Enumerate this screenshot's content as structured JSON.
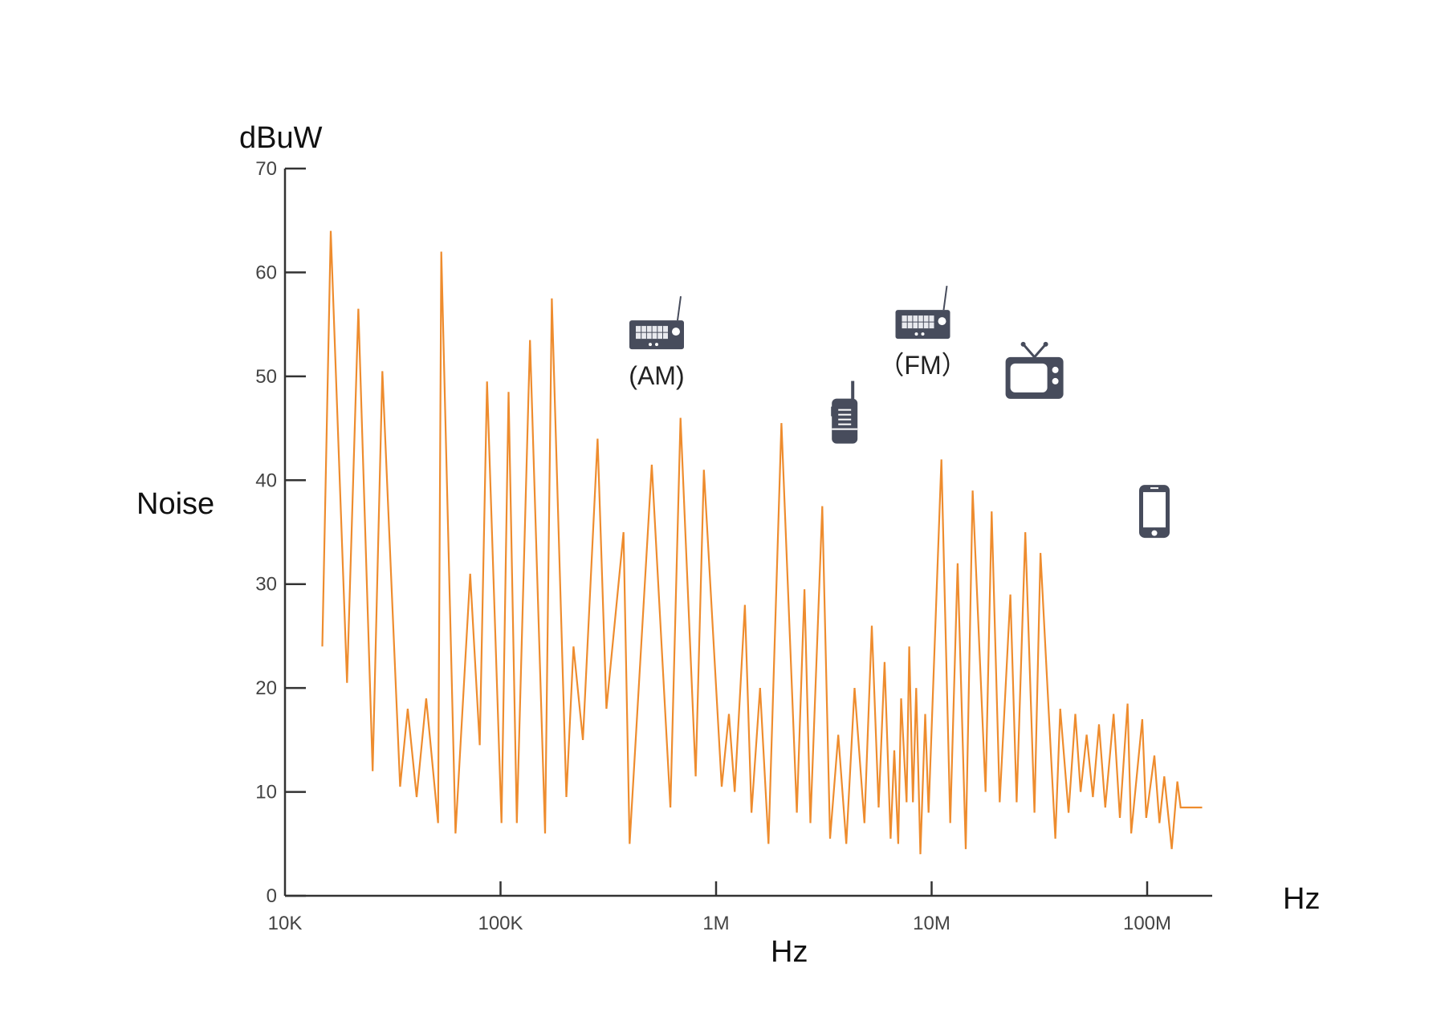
{
  "chart_data": {
    "type": "line",
    "ylabel_unit": "dBuW",
    "ylabel": "Noise",
    "xlabel": "Hz",
    "xlabel_unit": "Hz",
    "x_scale": "log",
    "x_range_hz": [
      10000,
      200000000
    ],
    "ylim": [
      0,
      70
    ],
    "y_ticks": [
      {
        "value": 0,
        "label": "0"
      },
      {
        "value": 10,
        "label": "10"
      },
      {
        "value": 20,
        "label": "20"
      },
      {
        "value": 30,
        "label": "30"
      },
      {
        "value": 40,
        "label": "40"
      },
      {
        "value": 50,
        "label": "50"
      },
      {
        "value": 60,
        "label": "60"
      },
      {
        "value": 70,
        "label": "70"
      }
    ],
    "x_ticks": [
      {
        "value": 10000,
        "label": "10K"
      },
      {
        "value": 100000,
        "label": "100K"
      },
      {
        "value": 1000000,
        "label": "1M"
      },
      {
        "value": 10000000,
        "label": "10M"
      },
      {
        "value": 100000000,
        "label": "100M"
      }
    ],
    "grid": false,
    "line_color": "#ee8c2e",
    "series": [
      {
        "values": [
          {
            "x": 14900,
            "y": 24
          },
          {
            "x": 16300,
            "y": 64
          },
          {
            "x": 19400,
            "y": 20.5
          },
          {
            "x": 21900,
            "y": 56.5
          },
          {
            "x": 25500,
            "y": 12
          },
          {
            "x": 28300,
            "y": 50.5
          },
          {
            "x": 34200,
            "y": 10.5
          },
          {
            "x": 37100,
            "y": 18
          },
          {
            "x": 40800,
            "y": 9.5
          },
          {
            "x": 45200,
            "y": 19
          },
          {
            "x": 51300,
            "y": 7
          },
          {
            "x": 53100,
            "y": 62
          },
          {
            "x": 61800,
            "y": 6
          },
          {
            "x": 72300,
            "y": 31
          },
          {
            "x": 80100,
            "y": 14.5
          },
          {
            "x": 86600,
            "y": 49.5
          },
          {
            "x": 101000,
            "y": 7
          },
          {
            "x": 109000,
            "y": 48.5
          },
          {
            "x": 119000,
            "y": 7
          },
          {
            "x": 137000,
            "y": 53.5
          },
          {
            "x": 161000,
            "y": 6
          },
          {
            "x": 173000,
            "y": 57.5
          },
          {
            "x": 202000,
            "y": 9.5
          },
          {
            "x": 218000,
            "y": 24
          },
          {
            "x": 241000,
            "y": 15
          },
          {
            "x": 282000,
            "y": 44
          },
          {
            "x": 310000,
            "y": 18
          },
          {
            "x": 372000,
            "y": 35
          },
          {
            "x": 397000,
            "y": 5
          },
          {
            "x": 503000,
            "y": 41.5
          },
          {
            "x": 614000,
            "y": 8.5
          },
          {
            "x": 684000,
            "y": 46
          },
          {
            "x": 804000,
            "y": 11.5
          },
          {
            "x": 878000,
            "y": 41
          },
          {
            "x": 1062000,
            "y": 10.5
          },
          {
            "x": 1147000,
            "y": 17.5
          },
          {
            "x": 1220000,
            "y": 10
          },
          {
            "x": 1360000,
            "y": 28
          },
          {
            "x": 1460000,
            "y": 8
          },
          {
            "x": 1600000,
            "y": 20
          },
          {
            "x": 1750000,
            "y": 5
          },
          {
            "x": 2010000,
            "y": 45.5
          },
          {
            "x": 2370000,
            "y": 8
          },
          {
            "x": 2570000,
            "y": 29.5
          },
          {
            "x": 2740000,
            "y": 7
          },
          {
            "x": 3110000,
            "y": 37.5
          },
          {
            "x": 3380000,
            "y": 5.5
          },
          {
            "x": 3690000,
            "y": 15.5
          },
          {
            "x": 4020000,
            "y": 5
          },
          {
            "x": 4390000,
            "y": 20
          },
          {
            "x": 4880000,
            "y": 7
          },
          {
            "x": 5280000,
            "y": 26
          },
          {
            "x": 5680000,
            "y": 8.5
          },
          {
            "x": 6050000,
            "y": 22.5
          },
          {
            "x": 6450000,
            "y": 5.5
          },
          {
            "x": 6710000,
            "y": 14
          },
          {
            "x": 7000000,
            "y": 5
          },
          {
            "x": 7220000,
            "y": 19
          },
          {
            "x": 7650000,
            "y": 9
          },
          {
            "x": 7870000,
            "y": 24
          },
          {
            "x": 8190000,
            "y": 9
          },
          {
            "x": 8480000,
            "y": 20
          },
          {
            "x": 8870000,
            "y": 4
          },
          {
            "x": 9340000,
            "y": 17.5
          },
          {
            "x": 9680000,
            "y": 8
          },
          {
            "x": 11100000,
            "y": 42
          },
          {
            "x": 12200000,
            "y": 7
          },
          {
            "x": 13200000,
            "y": 32
          },
          {
            "x": 14400000,
            "y": 4.5
          },
          {
            "x": 15500000,
            "y": 39
          },
          {
            "x": 17800000,
            "y": 10
          },
          {
            "x": 19000000,
            "y": 37
          },
          {
            "x": 20700000,
            "y": 9
          },
          {
            "x": 23200000,
            "y": 29
          },
          {
            "x": 24800000,
            "y": 9
          },
          {
            "x": 27200000,
            "y": 35
          },
          {
            "x": 30000000,
            "y": 8
          },
          {
            "x": 32000000,
            "y": 33
          },
          {
            "x": 37500000,
            "y": 5.5
          },
          {
            "x": 39500000,
            "y": 18
          },
          {
            "x": 43200000,
            "y": 8
          },
          {
            "x": 46400000,
            "y": 17.5
          },
          {
            "x": 49100000,
            "y": 10
          },
          {
            "x": 52400000,
            "y": 15.5
          },
          {
            "x": 56000000,
            "y": 9.5
          },
          {
            "x": 59800000,
            "y": 16.5
          },
          {
            "x": 63900000,
            "y": 8.5
          },
          {
            "x": 69900000,
            "y": 17.5
          },
          {
            "x": 74700000,
            "y": 7.5
          },
          {
            "x": 81100000,
            "y": 18.5
          },
          {
            "x": 84300000,
            "y": 6
          },
          {
            "x": 94900000,
            "y": 17
          },
          {
            "x": 99000000,
            "y": 7.5
          },
          {
            "x": 108000000,
            "y": 13.5
          },
          {
            "x": 114000000,
            "y": 7
          },
          {
            "x": 120000000,
            "y": 11.5
          },
          {
            "x": 130000000,
            "y": 4.5
          },
          {
            "x": 138000000,
            "y": 11
          },
          {
            "x": 143000000,
            "y": 8.5
          },
          {
            "x": 180000000,
            "y": 8.5
          }
        ]
      }
    ],
    "annotations": [
      {
        "icon": "am-radio-icon",
        "label": "(AM)",
        "x": 530000,
        "y": 54
      },
      {
        "icon": "walkie-talkie-icon",
        "label": "",
        "x": 3950000,
        "y": 46
      },
      {
        "icon": "fm-radio-icon",
        "label": "（FM）",
        "x": 9100000,
        "y": 55
      },
      {
        "icon": "tv-icon",
        "label": "",
        "x": 30000000,
        "y": 50
      },
      {
        "icon": "mobile-phone-icon",
        "label": "",
        "x": 108000000,
        "y": 37
      }
    ]
  }
}
